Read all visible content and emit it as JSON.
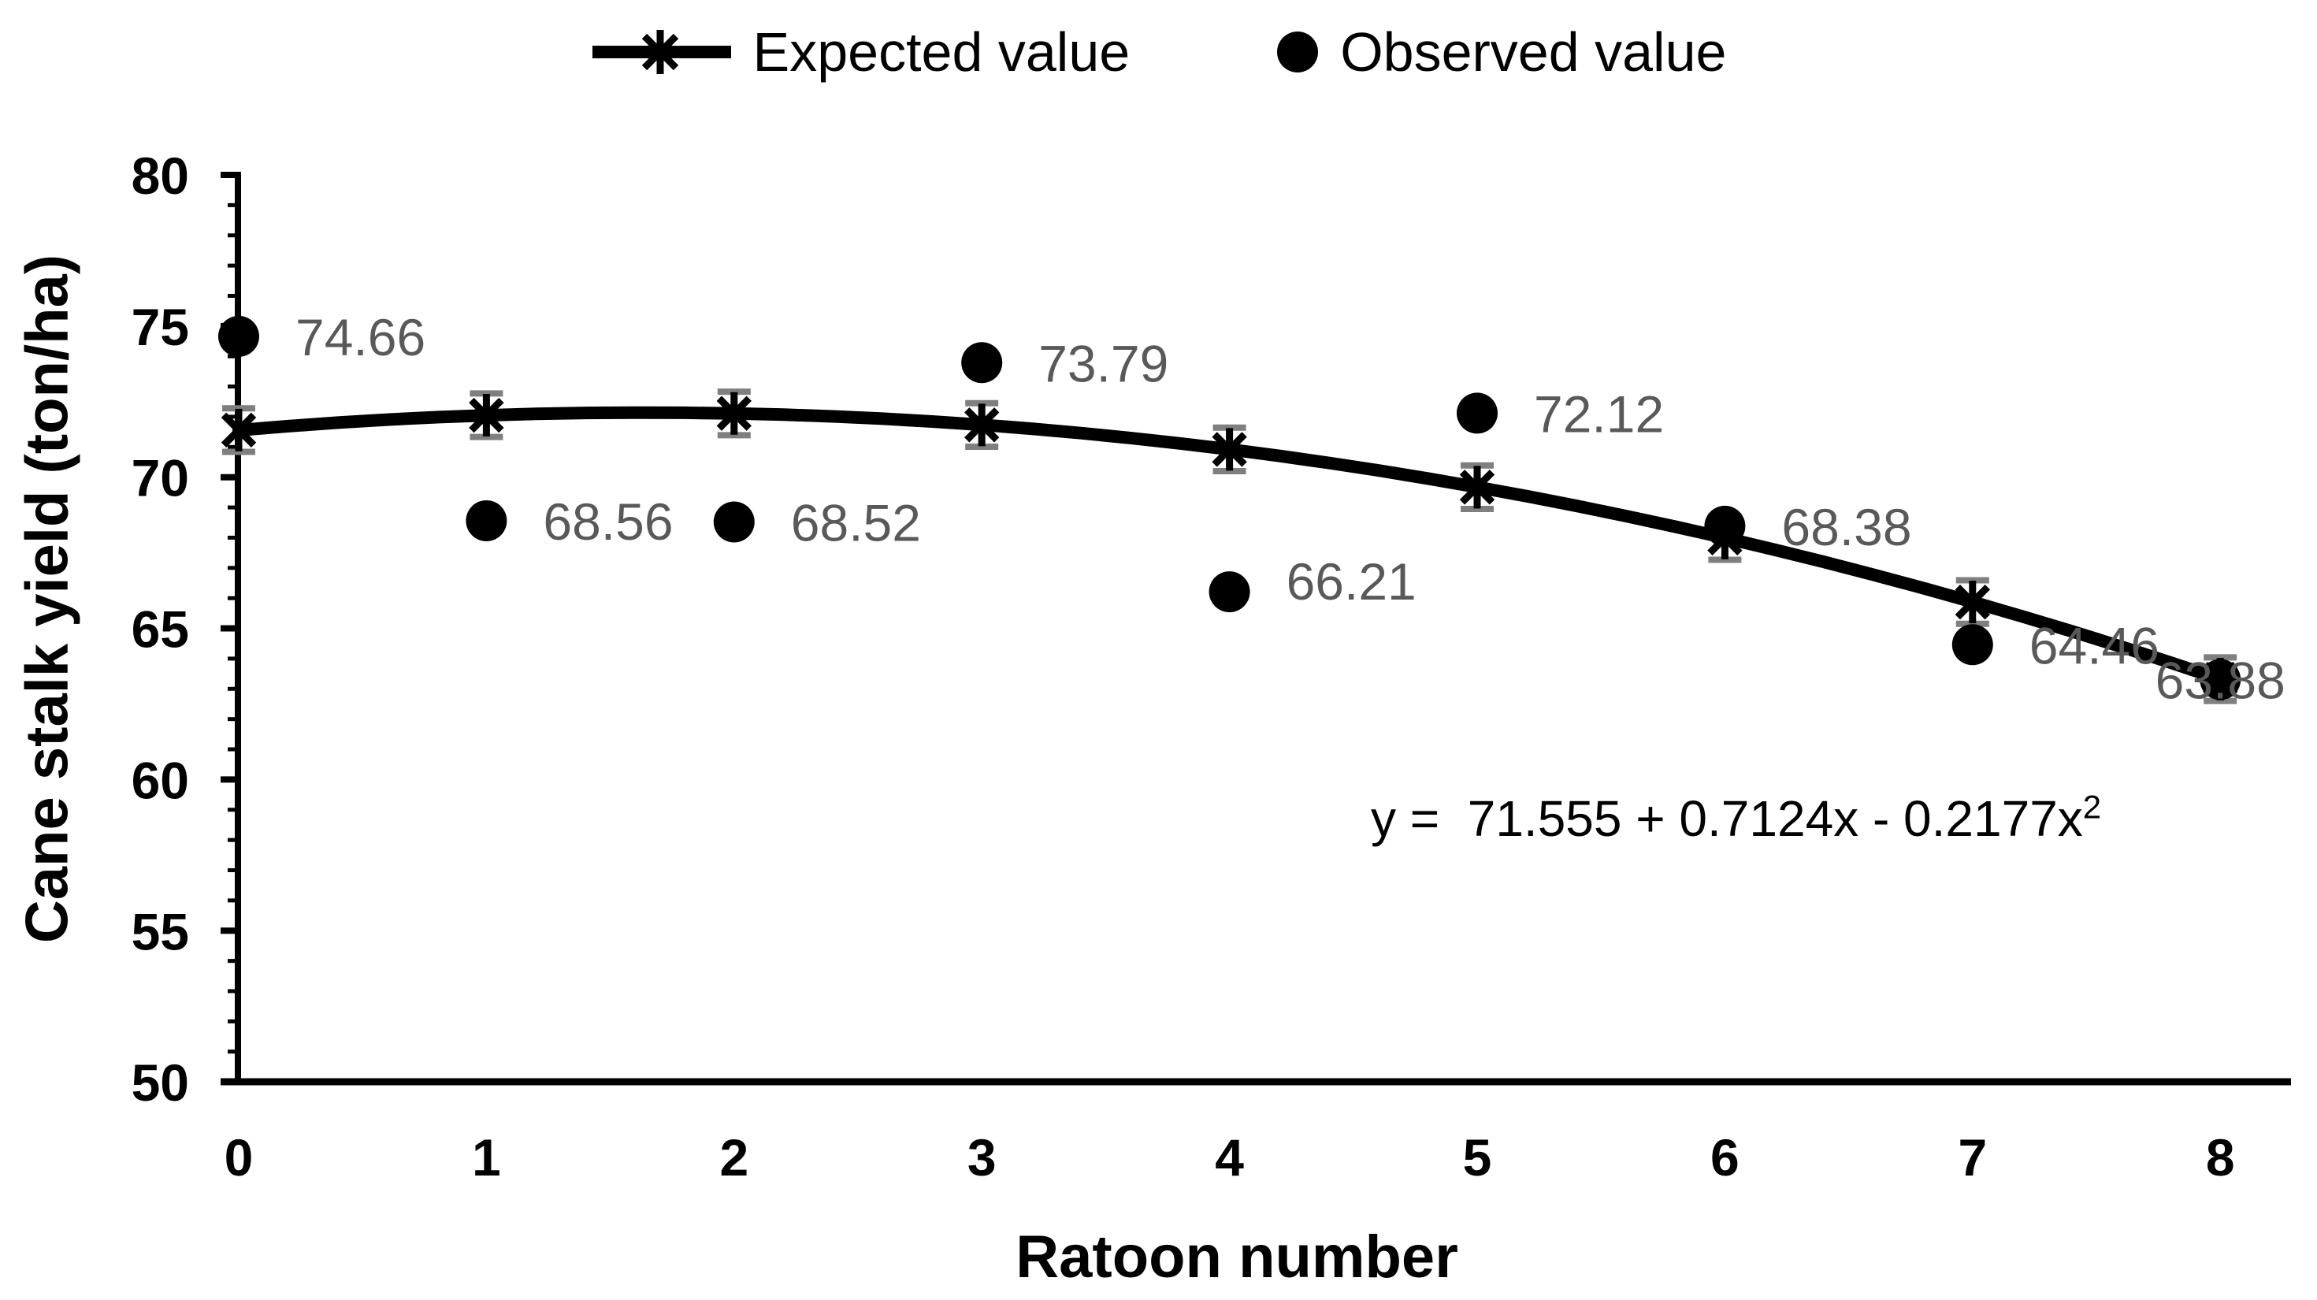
{
  "legend": {
    "position": "top",
    "items": [
      {
        "id": "expected",
        "label": "Expected value",
        "marker": "line-asterisk"
      },
      {
        "id": "observed",
        "label": "Observed value",
        "marker": "filled-circle"
      }
    ]
  },
  "y_axis": {
    "title": "Cane stalk yield (ton/ha)",
    "min": 50,
    "max": 80,
    "major_step": 5,
    "minor_step": 1,
    "tick_labels": [
      "50",
      "55",
      "60",
      "65",
      "70",
      "75",
      "80"
    ]
  },
  "x_axis": {
    "title": "Ratoon number",
    "tick_labels": [
      "0",
      "1",
      "2",
      "3",
      "4",
      "5",
      "6",
      "7",
      "8"
    ]
  },
  "equation": {
    "prefix": "y =  71.555 + 0.7124x - 0.2177x",
    "superscript": "2"
  },
  "colors": {
    "background": "#ffffff",
    "series": "#000000",
    "data_label": "#595959",
    "error_bar": "#7f7f7f",
    "axis": "#000000"
  },
  "chart_data": {
    "type": "line",
    "x": [
      0,
      1,
      2,
      3,
      4,
      5,
      6,
      7,
      8
    ],
    "xlim": [
      0,
      8
    ],
    "ylim": [
      50,
      80
    ],
    "grid": false,
    "legend_position": "top",
    "title": "",
    "xlabel": "Ratoon number",
    "ylabel": "Cane stalk yield (ton/ha)",
    "series": [
      {
        "name": "Expected value",
        "type": "line",
        "marker": "asterisk",
        "color": "#000000",
        "equation": "y = 71.555 + 0.7124x - 0.2177x^2",
        "coefficients": {
          "intercept": 71.555,
          "linear": 0.7124,
          "quadratic": -0.2177
        },
        "values": [
          71.56,
          72.05,
          72.11,
          71.73,
          70.92,
          69.67,
          67.99,
          65.87,
          63.32
        ],
        "error_bar_half": 0.72
      },
      {
        "name": "Observed value",
        "type": "scatter",
        "marker": "circle",
        "color": "#000000",
        "values": [
          74.66,
          68.56,
          68.52,
          73.79,
          66.21,
          72.12,
          68.38,
          64.46,
          63.88
        ],
        "data_labels": [
          "74.66",
          "68.56",
          "68.52",
          "73.79",
          "66.21",
          "72.12",
          "68.38",
          "64.46",
          "63.88"
        ]
      }
    ]
  },
  "label_layout": {
    "default": {
      "dx": 72,
      "dy": 0,
      "anchor": "start"
    },
    "overrides": {
      "4": {
        "dx": 72,
        "dy": -14,
        "anchor": "start"
      },
      "8": {
        "dx": 0,
        "dy": 22,
        "anchor": "middle",
        "dot_dy": 22
      }
    }
  }
}
